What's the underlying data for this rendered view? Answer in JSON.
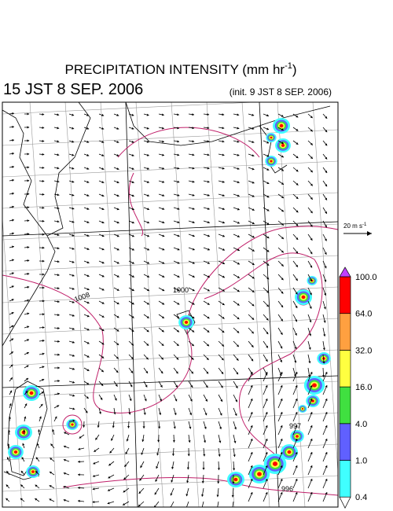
{
  "header": {
    "title": "PRECIPITATION INTENSITY (mm hr",
    "title_exponent": "-1",
    "title_close": ")",
    "valid_time": "15 JST 8 SEP. 2006",
    "init_time": "(init. 9 JST 8 SEP. 2006)"
  },
  "wind_scale": {
    "label": "20 m s",
    "exponent": "-1"
  },
  "isobar_labels": [
    "1008",
    "1000",
    "997",
    "996"
  ],
  "colorbar": {
    "labels": [
      "0.4",
      "1.0",
      "4.0",
      "16.0",
      "32.0",
      "64.0",
      "100.0"
    ],
    "colors": [
      "#ffffff",
      "#40ffff",
      "#6060ff",
      "#40e040",
      "#ffff40",
      "#ffa040",
      "#ff0000",
      "#c040ff"
    ]
  }
}
